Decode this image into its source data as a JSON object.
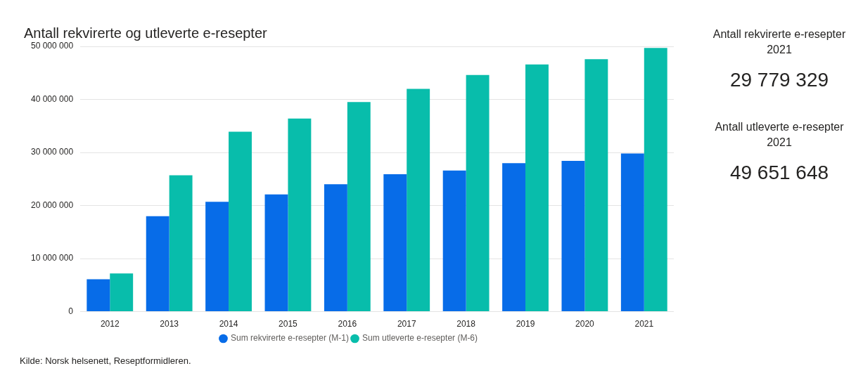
{
  "chart_data": [
    {
      "type": "bar",
      "title": "Antall rekvirerte og utleverte e-resepter",
      "categories": [
        "2012",
        "2013",
        "2014",
        "2015",
        "2016",
        "2017",
        "2018",
        "2019",
        "2020",
        "2021"
      ],
      "series": [
        {
          "name": "Sum rekvirerte e-resepter (M-1)",
          "color": "#076ce8",
          "values": [
            6100000,
            18000000,
            20700000,
            22100000,
            24000000,
            25900000,
            26600000,
            28000000,
            28400000,
            29800000
          ]
        },
        {
          "name": "Sum utleverte e-resepter (M-6)",
          "color": "#08bdab",
          "values": [
            7200000,
            25700000,
            33900000,
            36400000,
            39500000,
            42000000,
            44600000,
            46600000,
            47600000,
            49700000
          ]
        }
      ],
      "ylim": [
        0,
        50000000
      ],
      "yticks": [
        0,
        {
          "value": 10000000,
          "label": "10 000 000"
        },
        {
          "value": 20000000,
          "label": "20 000 000"
        },
        {
          "value": 30000000,
          "label": "30 000 000"
        },
        {
          "value": 40000000,
          "label": "40 000 000"
        },
        {
          "value": 50000000,
          "label": "50 000 000"
        }
      ],
      "grid": "y",
      "legend": "bottom",
      "annotations": [
        "Kilde: Norsk helsenett, Reseptformidleren."
      ]
    },
    {
      "type": "other",
      "title": "Antall rekvirerte e-resepter 2021",
      "annotations": [
        "29 779 329"
      ]
    },
    {
      "type": "other",
      "title": "Antall utleverte e-resepter 2021",
      "annotations": [
        "49 651 648"
      ]
    }
  ]
}
